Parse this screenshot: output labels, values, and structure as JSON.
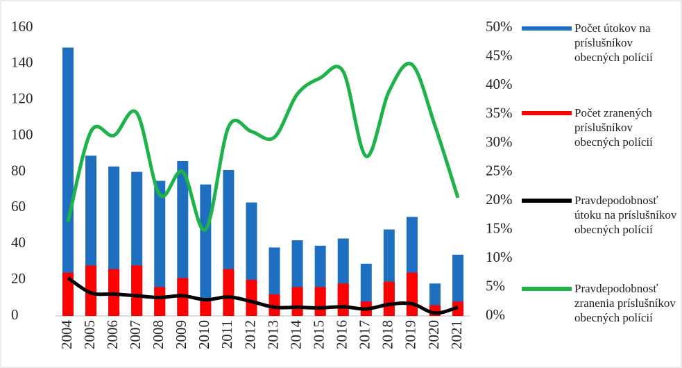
{
  "chart_data": {
    "type": "bar-line",
    "categories": [
      "2004",
      "2005",
      "2006",
      "2007",
      "2008",
      "2009",
      "2010",
      "2011",
      "2012",
      "2013",
      "2014",
      "2015",
      "2016",
      "2017",
      "2018",
      "2019",
      "2020",
      "2021"
    ],
    "series": [
      {
        "name": "Počet útokov na príslušníkov obecných polícií",
        "color": "#1f6fc1",
        "type": "bar",
        "values": [
          149,
          89,
          83,
          80,
          75,
          86,
          73,
          81,
          63,
          38,
          42,
          39,
          43,
          29,
          48,
          55,
          18,
          34
        ]
      },
      {
        "name": "Počet zranených príslušníkov obecných polícií",
        "color": "#ff0000",
        "type": "bar",
        "values": [
          24,
          28,
          26,
          28,
          16,
          21,
          8,
          26,
          20,
          12,
          16,
          16,
          18,
          8,
          19,
          24,
          6,
          8
        ]
      },
      {
        "name": "Pravdepodobnosť útoku na príslušníkov obecných polícií",
        "color": "#000000",
        "type": "line",
        "axis": "y2",
        "values": [
          6.6,
          4,
          3.8,
          3.5,
          3.2,
          3.5,
          2.8,
          3.3,
          2.5,
          1.5,
          1.5,
          1.4,
          1.6,
          1.2,
          2,
          2.1,
          0.5,
          1.5
        ]
      },
      {
        "name": "Pravdepodobnosť zranenia príslušníkov obecných polícií",
        "color": "#1db34a",
        "type": "line",
        "axis": "y2",
        "values": [
          16.3,
          32,
          31.3,
          35.2,
          21,
          25,
          15,
          32.8,
          32,
          31,
          38.5,
          41.3,
          42.4,
          27.7,
          39,
          43.6,
          33,
          20.5
        ]
      }
    ],
    "ylim": [
      0,
      160
    ],
    "yticks": [
      0,
      20,
      40,
      60,
      80,
      100,
      120,
      140,
      160
    ],
    "y2lim": [
      0,
      50
    ],
    "y2ticks": [
      {
        "value": 0,
        "label": "0%"
      },
      {
        "value": 5,
        "label": "5%"
      },
      {
        "value": 10,
        "label": "10%"
      },
      {
        "value": 15,
        "label": "15%"
      },
      {
        "value": 20,
        "label": "20%"
      },
      {
        "value": 25,
        "label": "25%"
      },
      {
        "value": 30,
        "label": "30%"
      },
      {
        "value": 35,
        "label": "35%"
      },
      {
        "value": 40,
        "label": "40%"
      },
      {
        "value": 45,
        "label": "45%"
      },
      {
        "value": 50,
        "label": "50%"
      }
    ],
    "legend": "right"
  }
}
